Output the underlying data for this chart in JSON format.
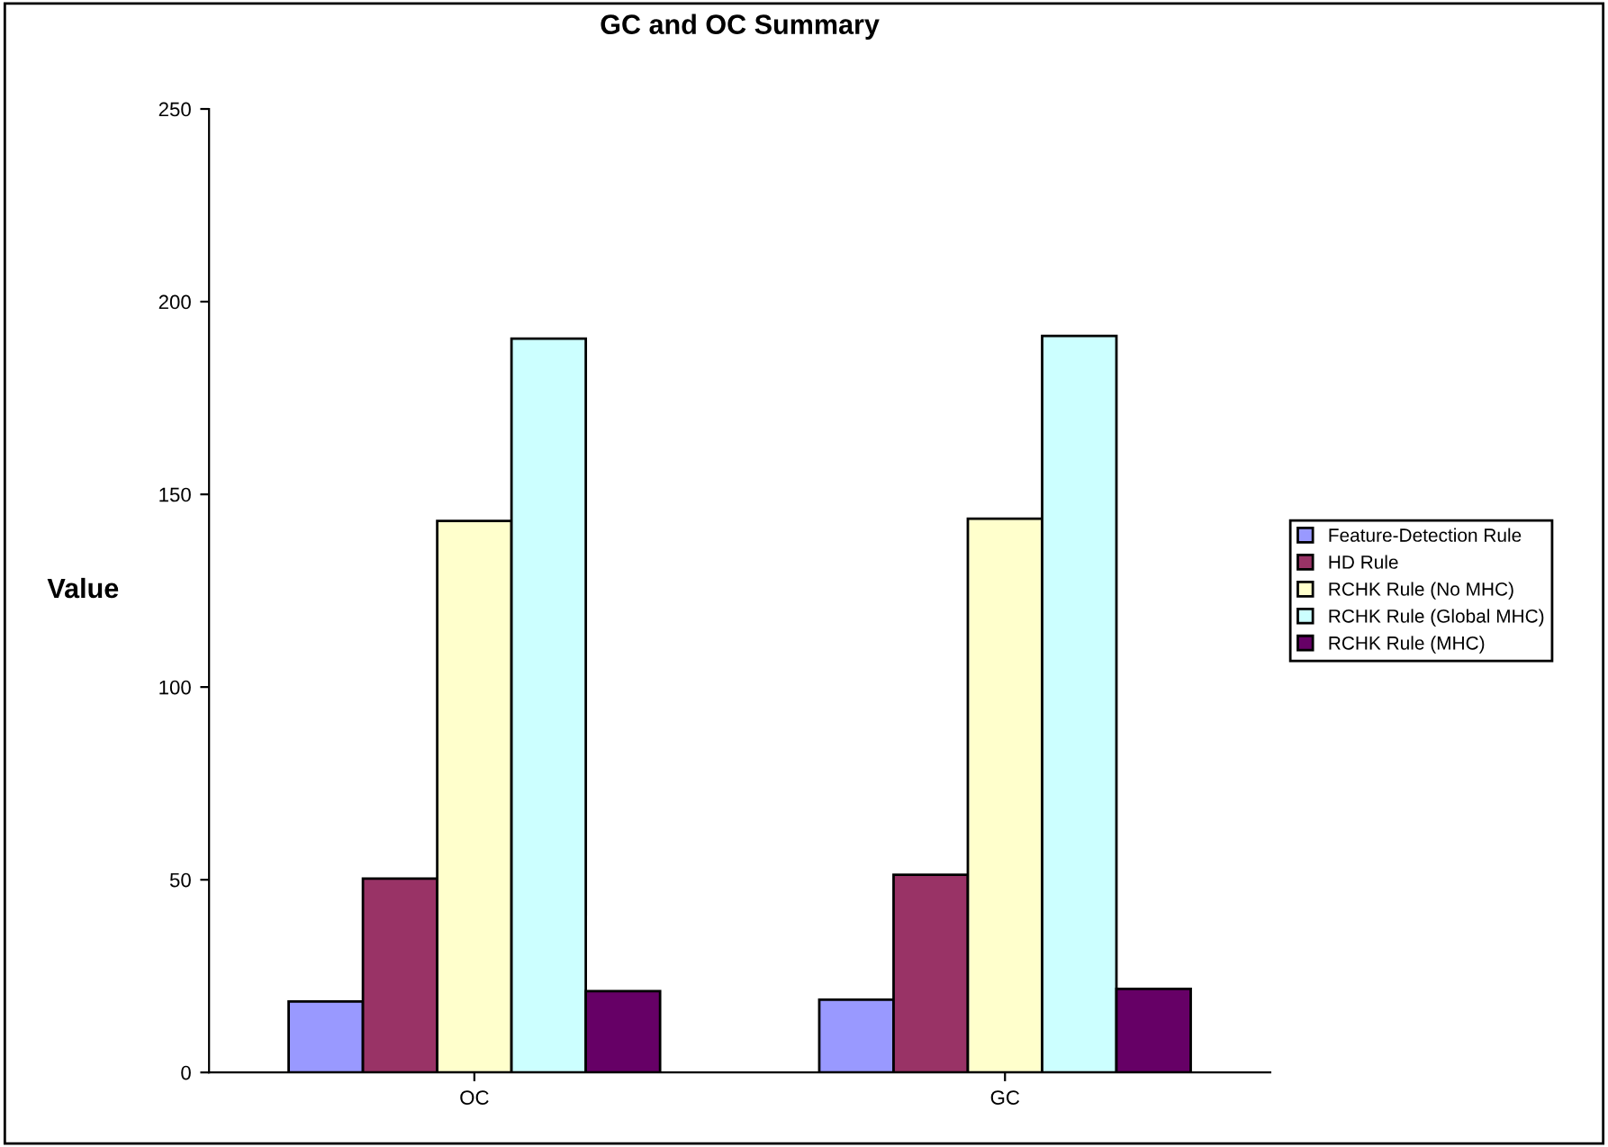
{
  "chart_data": {
    "type": "bar",
    "title": "GC and OC Summary",
    "ylabel": "Value",
    "categories": [
      "OC",
      "GC"
    ],
    "series": [
      {
        "name": "Feature-Detection Rule",
        "color": "#9999ff",
        "values": [
          18.4,
          18.9
        ]
      },
      {
        "name": "HD Rule",
        "color": "#993366",
        "values": [
          50.3,
          51.3
        ]
      },
      {
        "name": "RCHK Rule (No MHC)",
        "color": "#ffffcc",
        "values": [
          143.1,
          143.7
        ]
      },
      {
        "name": "RCHK Rule (Global MHC)",
        "color": "#ccffff",
        "values": [
          190.4,
          191.1
        ]
      },
      {
        "name": "RCHK Rule (MHC)",
        "color": "#660066",
        "values": [
          21.1,
          21.7
        ]
      }
    ],
    "ylim": [
      0,
      250
    ],
    "yticks": [
      0,
      50,
      100,
      150,
      200,
      250
    ],
    "grid": false,
    "legend": "right"
  }
}
